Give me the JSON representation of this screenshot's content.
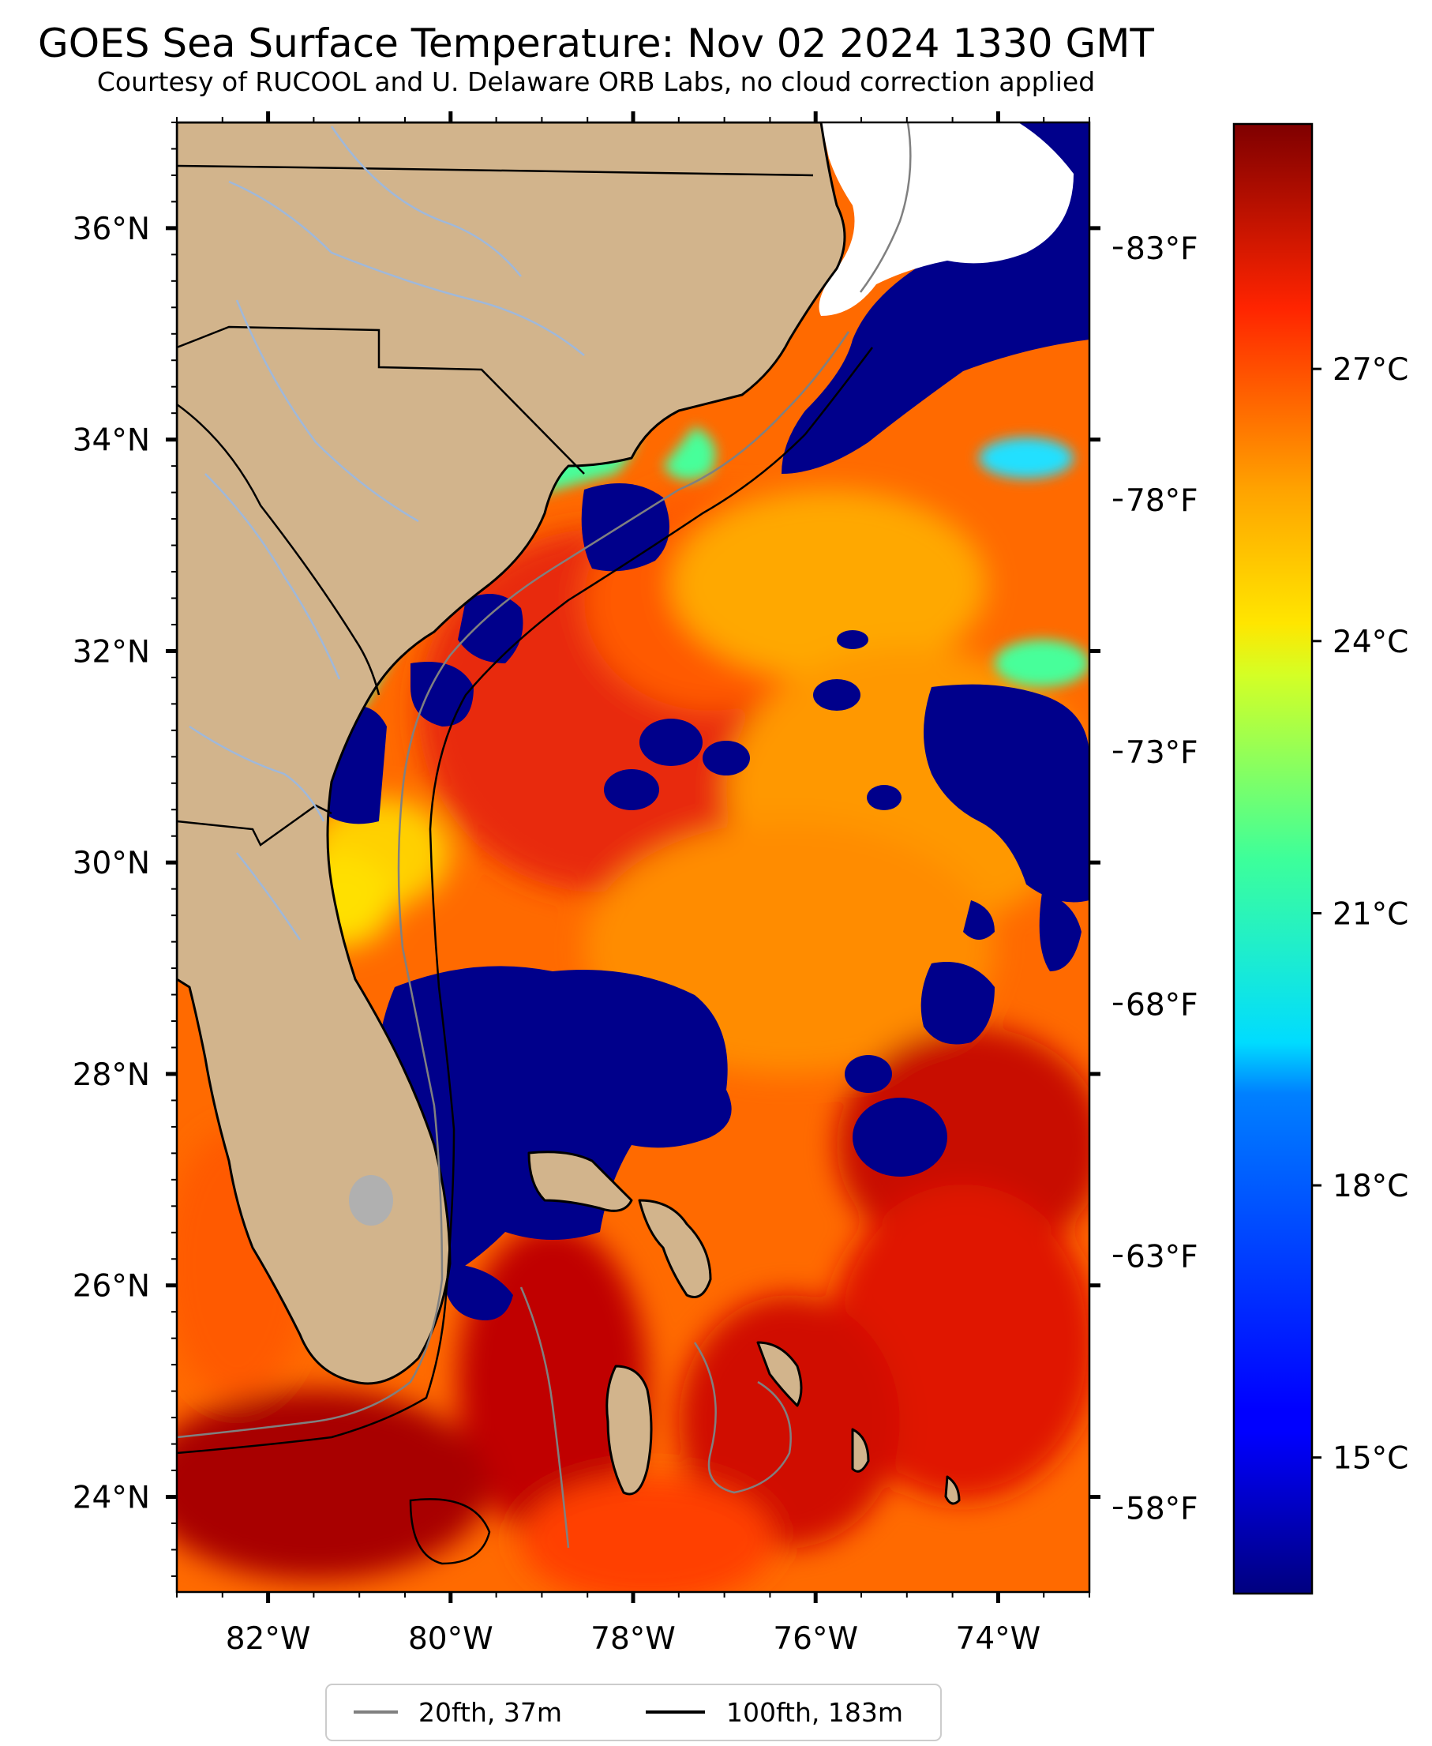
{
  "title": "GOES Sea Surface Temperature: Nov 02 2024 1330 GMT",
  "subtitle": "Courtesy of RUCOOL and U. Delaware ORB Labs, no cloud correction applied",
  "map": {
    "lon_range": [
      -83.0,
      -73.0
    ],
    "lat_range": [
      23.1,
      37.0
    ],
    "lon_ticks": [
      {
        "value": -82,
        "label": "82°W"
      },
      {
        "value": -80,
        "label": "80°W"
      },
      {
        "value": -78,
        "label": "78°W"
      },
      {
        "value": -76,
        "label": "76°W"
      },
      {
        "value": -74,
        "label": "74°W"
      }
    ],
    "lat_ticks": [
      {
        "value": 36,
        "label": "36°N"
      },
      {
        "value": 34,
        "label": "34°N"
      },
      {
        "value": 32,
        "label": "32°N"
      },
      {
        "value": 30,
        "label": "30°N"
      },
      {
        "value": 28,
        "label": "28°N"
      },
      {
        "value": 26,
        "label": "26°N"
      },
      {
        "value": 24,
        "label": "24°N"
      }
    ],
    "land_color": "#d2b48c",
    "cloud_color": "#00008b",
    "no_data_color": "#ffffff"
  },
  "colorbar": {
    "range_c": [
      13.5,
      29.7
    ],
    "colormap": "jet",
    "celsius_ticks": [
      {
        "value": 15,
        "label": "15°C"
      },
      {
        "value": 18,
        "label": "18°C"
      },
      {
        "value": 21,
        "label": "21°C"
      },
      {
        "value": 24,
        "label": "24°C"
      },
      {
        "value": 27,
        "label": "27°C"
      }
    ],
    "fahrenheit_ticks": [
      {
        "value": 58,
        "label": "58°F"
      },
      {
        "value": 63,
        "label": "63°F"
      },
      {
        "value": 68,
        "label": "68°F"
      },
      {
        "value": 73,
        "label": "73°F"
      },
      {
        "value": 78,
        "label": "78°F"
      },
      {
        "value": 83,
        "label": "83°F"
      }
    ]
  },
  "legend": {
    "items": [
      {
        "label": "20fth, 37m",
        "color": "#808080"
      },
      {
        "label": "100fth, 183m",
        "color": "#000000"
      }
    ]
  }
}
